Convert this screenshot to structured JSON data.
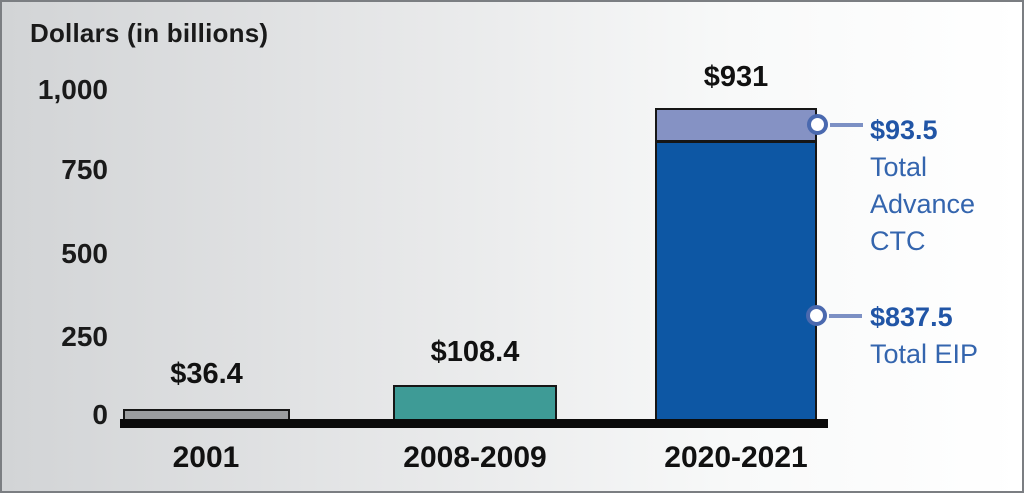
{
  "title": "Dollars (in billions)",
  "axis": {
    "yticks": [
      {
        "label": "1,000"
      },
      {
        "label": "750"
      },
      {
        "label": "500"
      },
      {
        "label": "250"
      },
      {
        "label": "0"
      }
    ]
  },
  "bars": [
    {
      "category": "2001",
      "value_label": "$36.4",
      "color": "#9b9d9f"
    },
    {
      "category": "2008-2009",
      "value_label": "$108.4",
      "color": "#3e9b96"
    },
    {
      "category": "2020-2021",
      "value_label": "$931",
      "color": "#0d57a4",
      "top_segment_color": "#8592c4"
    }
  ],
  "callouts": [
    {
      "value": "$93.5",
      "line1": "Total",
      "line2": "Advance",
      "line3": "CTC"
    },
    {
      "value": "$837.5",
      "line1": "Total EIP"
    }
  ],
  "colors": {
    "bar_2001": "#9b9d9f",
    "bar_2008_2009": "#3e9b96",
    "bar_eip": "#0d57a4",
    "bar_advance_ctc": "#8592c4",
    "callout_value_text": "#2155a6",
    "callout_label_text": "#3465ae",
    "callout_marker_ring": "#4a69af",
    "axis_text": "#1a1a1a",
    "baseline": "#0b0b0b"
  },
  "chart_data": {
    "type": "bar",
    "title": "Dollars (in billions)",
    "categories": [
      "2001",
      "2008-2009",
      "2020-2021"
    ],
    "values": [
      36.4,
      108.4,
      931
    ],
    "data_labels": [
      "$36.4",
      "$108.4",
      "$931"
    ],
    "stacked_breakdown": {
      "2020-2021": [
        {
          "name": "Total EIP",
          "value": 837.5,
          "label": "$837.5"
        },
        {
          "name": "Total Advance CTC",
          "value": 93.5,
          "label": "$93.5"
        }
      ]
    },
    "xlabel": "",
    "ylabel": "Dollars (in billions)",
    "ylim": [
      0,
      1000
    ],
    "yticks": [
      0,
      250,
      500,
      750,
      1000
    ],
    "ytick_labels": [
      "0",
      "250",
      "500",
      "750",
      "1,000"
    ],
    "grid": false,
    "legend": "none",
    "annotations": [
      {
        "text": "$93.5 Total Advance CTC",
        "target_value": 93.5
      },
      {
        "text": "$837.5 Total EIP",
        "target_value": 837.5
      }
    ]
  }
}
